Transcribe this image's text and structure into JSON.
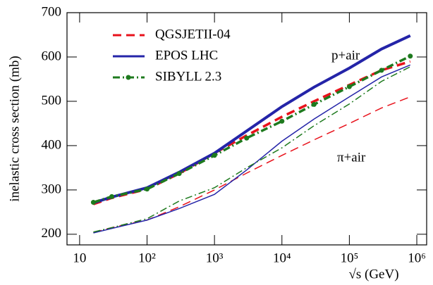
{
  "chart_data": {
    "type": "line",
    "x_label": "√s (GeV)",
    "y_label": "inelastic cross section (mb)",
    "annotations": [
      "p+air",
      "π+air"
    ],
    "xscale": "log",
    "xlim": [
      6.5,
      1400000
    ],
    "ylim": [
      176,
      700
    ],
    "xticks": [
      {
        "value": 10,
        "label": "10"
      },
      {
        "value": 100,
        "label": "10²"
      },
      {
        "value": 1000,
        "label": "10³"
      },
      {
        "value": 10000,
        "label": "10⁴"
      },
      {
        "value": 100000,
        "label": "10⁵"
      },
      {
        "value": 1000000,
        "label": "10⁶"
      }
    ],
    "yticks": [
      200,
      300,
      400,
      500,
      600,
      700
    ],
    "x": [
      16,
      30,
      100,
      300,
      1000,
      3000,
      10000,
      30000,
      100000,
      300000,
      800000
    ],
    "series": [
      {
        "name": "QGSJETII-04",
        "color": "#e8121b",
        "dash": "12 7",
        "markers": false,
        "values": [
          268,
          282,
          302,
          337,
          383,
          423,
          465,
          500,
          537,
          570,
          590
        ],
        "values2": [
          204,
          215,
          232,
          262,
          300,
          338,
          378,
          413,
          450,
          485,
          510
        ]
      },
      {
        "name": "EPOS LHC",
        "color": "#2424a8",
        "dash": "",
        "markers": false,
        "values": [
          271,
          284,
          305,
          340,
          383,
          433,
          488,
          532,
          575,
          618,
          648
        ],
        "values2": [
          203,
          213,
          232,
          258,
          290,
          345,
          410,
          460,
          510,
          555,
          582
        ]
      },
      {
        "name": "SIBYLL 2.3",
        "color": "#1e7a1e",
        "dash": "10 4 2 4",
        "markers": true,
        "values": [
          272,
          285,
          302,
          337,
          378,
          417,
          455,
          493,
          533,
          570,
          602
        ],
        "values2": [
          205,
          215,
          235,
          275,
          305,
          350,
          395,
          445,
          494,
          545,
          578
        ]
      }
    ]
  }
}
